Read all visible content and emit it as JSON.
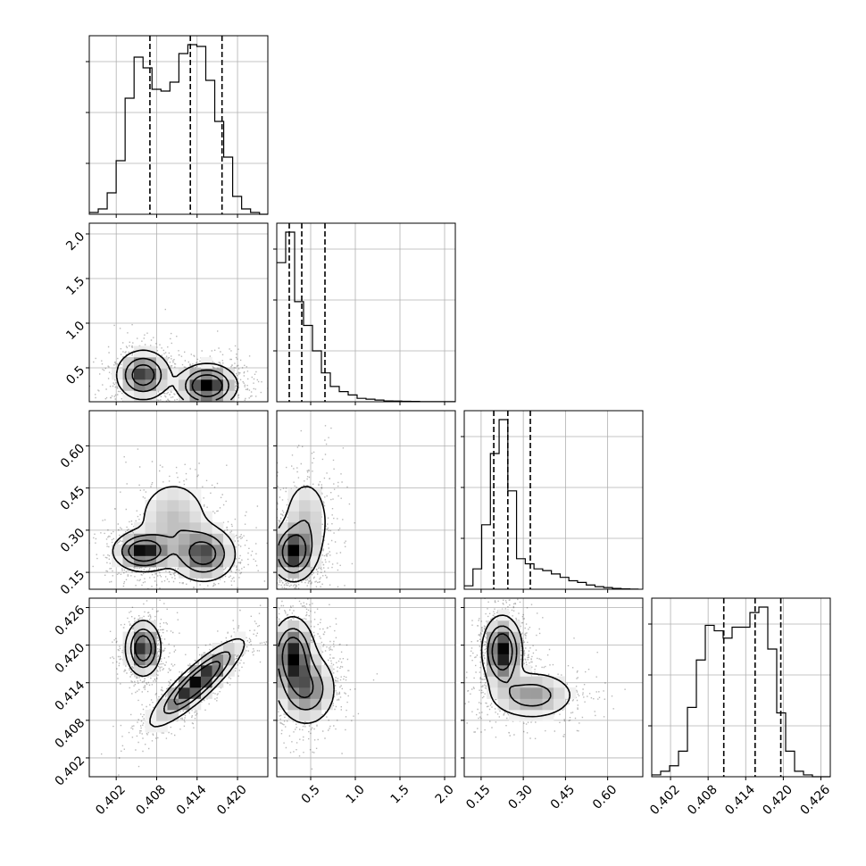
{
  "chart_data": {
    "type": "corner",
    "title": "",
    "grid": true,
    "parameters": [
      {
        "label": "",
        "range": [
          0.398,
          0.4245
        ],
        "ticks": [
          0.402,
          0.408,
          0.414,
          0.42
        ],
        "tick_labels": [
          "0.402",
          "0.408",
          "0.414",
          "0.420"
        ],
        "quantiles": [
          0.407,
          0.413,
          0.4177
        ]
      },
      {
        "label": "",
        "range": [
          0.12,
          2.12
        ],
        "ticks": [
          0.5,
          1.0,
          1.5,
          2.0
        ],
        "tick_labels": [
          "0.5",
          "1.0",
          "1.5",
          "2.0"
        ],
        "quantiles": [
          0.26,
          0.4,
          0.66
        ]
      },
      {
        "label": "",
        "range": [
          0.09,
          0.725
        ],
        "ticks": [
          0.15,
          0.3,
          0.45,
          0.6
        ],
        "tick_labels": [
          "0.15",
          "0.30",
          "0.45",
          "0.60"
        ],
        "quantiles": [
          0.195,
          0.245,
          0.325
        ]
      },
      {
        "label": "",
        "range": [
          0.399,
          0.4275
        ],
        "ticks": [
          0.402,
          0.408,
          0.414,
          0.42,
          0.426
        ],
        "tick_labels": [
          "0.402",
          "0.408",
          "0.414",
          "0.420",
          "0.426"
        ],
        "quantiles": [
          0.4105,
          0.4155,
          0.4196
        ]
      }
    ],
    "histograms": [
      {
        "edges_start": 0.398,
        "bin_width": 0.00133,
        "counts": [
          1,
          3,
          12,
          30,
          65,
          88,
          82,
          70,
          69,
          74,
          90,
          95,
          94,
          75,
          52,
          32,
          10,
          3,
          1,
          0
        ]
      },
      {
        "edges_start": 0.12,
        "bin_width": 0.1,
        "counts": [
          82,
          100,
          59,
          45,
          30,
          17,
          9,
          6,
          4,
          2,
          1.5,
          1,
          0.5,
          0.4,
          0.3,
          0.2,
          0.1,
          0.1,
          0.05,
          0.05
        ]
      },
      {
        "edges_start": 0.09,
        "bin_width": 0.031,
        "counts": [
          2,
          12,
          38,
          80,
          100,
          58,
          18,
          15,
          12,
          11,
          9,
          7,
          5,
          4,
          2.5,
          1.5,
          1,
          0.5,
          0.2,
          0.1
        ]
      },
      {
        "edges_start": 0.399,
        "bin_width": 0.001425,
        "counts": [
          1,
          3,
          6,
          14,
          38,
          64,
          83,
          80,
          76,
          82,
          82,
          90,
          93,
          70,
          35,
          14,
          3,
          1,
          0,
          0
        ]
      }
    ],
    "blobs": {
      "1,0": [
        {
          "cx": 0.406,
          "cy": 0.42,
          "sx": 0.002,
          "sy": 0.14,
          "w": 1.0
        },
        {
          "cx": 0.4155,
          "cy": 0.3,
          "sx": 0.0022,
          "sy": 0.12,
          "w": 1.2
        }
      ],
      "2,0": [
        {
          "cx": 0.406,
          "cy": 0.225,
          "sx": 0.0022,
          "sy": 0.035,
          "w": 1.0
        },
        {
          "cx": 0.415,
          "cy": 0.215,
          "sx": 0.0024,
          "sy": 0.05,
          "w": 0.8
        },
        {
          "cx": 0.4105,
          "cy": 0.34,
          "sx": 0.003,
          "sy": 0.08,
          "w": 0.35
        }
      ],
      "2,1": [
        {
          "cx": 0.3,
          "cy": 0.22,
          "sx": 0.12,
          "sy": 0.05,
          "w": 1.0
        },
        {
          "cx": 0.45,
          "cy": 0.33,
          "sx": 0.15,
          "sy": 0.09,
          "w": 0.35
        }
      ],
      "3,0": [
        {
          "cx": 0.406,
          "cy": 0.4195,
          "sx": 0.0013,
          "sy": 0.0022,
          "w": 1.0
        },
        {
          "cx": 0.414,
          "cy": 0.414,
          "sx": 0.0034,
          "sy": 0.0034,
          "rho": 0.88,
          "w": 1.1
        }
      ],
      "3,1": [
        {
          "cx": 0.3,
          "cy": 0.4185,
          "sx": 0.12,
          "sy": 0.003,
          "w": 1.0
        },
        {
          "cx": 0.45,
          "cy": 0.413,
          "sx": 0.17,
          "sy": 0.003,
          "w": 0.7
        }
      ],
      "3,2": [
        {
          "cx": 0.225,
          "cy": 0.419,
          "sx": 0.035,
          "sy": 0.0028,
          "w": 1.0
        },
        {
          "cx": 0.33,
          "cy": 0.412,
          "sx": 0.08,
          "sy": 0.002,
          "w": 0.5
        }
      ]
    }
  }
}
